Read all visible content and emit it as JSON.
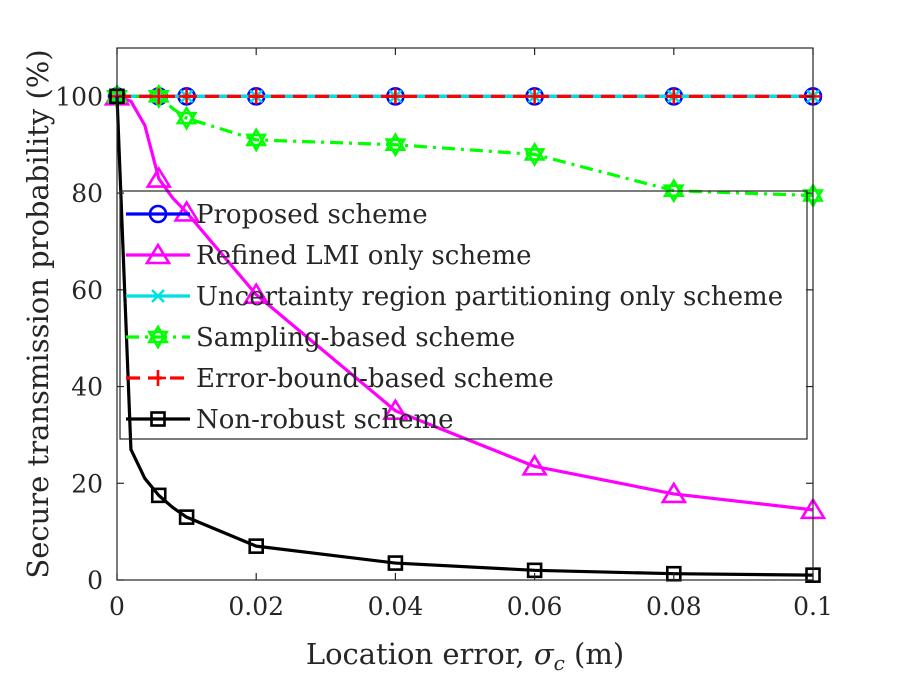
{
  "chart_data": {
    "type": "line",
    "xlabel": "Location error, σ_c (m)",
    "xlabel_main": "Location error, ",
    "xlabel_sym": "σ",
    "xlabel_sub": "c",
    "xlabel_unit": " (m)",
    "ylabel": "Secure transmission probability (%)",
    "xlim": [
      0,
      0.1
    ],
    "ylim": [
      0,
      110
    ],
    "x_ticks": [
      0,
      0.02,
      0.04,
      0.06,
      0.08,
      0.1
    ],
    "x_tick_labels": [
      "0",
      "0.02",
      "0.04",
      "0.06",
      "0.08",
      "0.1"
    ],
    "y_ticks": [
      0,
      20,
      40,
      60,
      80,
      100
    ],
    "y_tick_labels": [
      "0",
      "20",
      "40",
      "60",
      "80",
      "100"
    ],
    "grid": false,
    "legend_position": "center-right",
    "series": [
      {
        "name": "Proposed scheme",
        "color": "#0000ff",
        "dash": "solid",
        "marker": "circle",
        "x": [
          0,
          0.002,
          0.004,
          0.006,
          0.008,
          0.01,
          0.02,
          0.04,
          0.06,
          0.08,
          0.1
        ],
        "y": [
          100,
          100,
          100,
          100,
          100,
          100,
          100,
          100,
          100,
          100,
          100
        ],
        "marker_x": [
          0,
          0.006,
          0.01,
          0.02,
          0.04,
          0.06,
          0.08,
          0.1
        ]
      },
      {
        "name": "Refined LMI only scheme",
        "color": "#ff00ff",
        "dash": "solid",
        "marker": "triangle",
        "x": [
          0,
          0.002,
          0.004,
          0.006,
          0.008,
          0.01,
          0.02,
          0.04,
          0.06,
          0.08,
          0.1
        ],
        "y": [
          100,
          99,
          94,
          83,
          79,
          76,
          59,
          35,
          23.5,
          17.8,
          14.5
        ],
        "marker_x": [
          0,
          0.006,
          0.01,
          0.02,
          0.04,
          0.06,
          0.08,
          0.1
        ]
      },
      {
        "name": "Uncertainty region partitioning only scheme",
        "color": "#00e0e0",
        "dash": "solid",
        "marker": "x",
        "x": [
          0,
          0.002,
          0.004,
          0.006,
          0.008,
          0.01,
          0.02,
          0.04,
          0.06,
          0.08,
          0.1
        ],
        "y": [
          100,
          100,
          100,
          100,
          100,
          100,
          100,
          100,
          100,
          100,
          100
        ],
        "marker_x": [
          0,
          0.006,
          0.01,
          0.02,
          0.04,
          0.06,
          0.08,
          0.1
        ]
      },
      {
        "name": "Sampling-based scheme",
        "color": "#00ff00",
        "dash": "dashdot",
        "marker": "hexagram",
        "x": [
          0,
          0.002,
          0.004,
          0.006,
          0.008,
          0.01,
          0.02,
          0.04,
          0.06,
          0.08,
          0.1
        ],
        "y": [
          100,
          100,
          100,
          100,
          97.5,
          95.5,
          91,
          90,
          88,
          80.5,
          79.5
        ],
        "marker_x": [
          0,
          0.006,
          0.01,
          0.02,
          0.04,
          0.06,
          0.08,
          0.1
        ]
      },
      {
        "name": "Error-bound-based scheme",
        "color": "#ff0000",
        "dash": "dashed",
        "marker": "plus",
        "x": [
          0,
          0.002,
          0.004,
          0.006,
          0.008,
          0.01,
          0.02,
          0.04,
          0.06,
          0.08,
          0.1
        ],
        "y": [
          100,
          100,
          100,
          100,
          100,
          100,
          100,
          100,
          100,
          100,
          100
        ],
        "marker_x": [
          0,
          0.006,
          0.01,
          0.02,
          0.04,
          0.06,
          0.08,
          0.1
        ]
      },
      {
        "name": "Non-robust scheme",
        "color": "#000000",
        "dash": "solid",
        "marker": "square",
        "x": [
          0,
          0.002,
          0.004,
          0.006,
          0.008,
          0.01,
          0.02,
          0.04,
          0.06,
          0.08,
          0.1
        ],
        "y": [
          100,
          27,
          21,
          17.5,
          15,
          13,
          7,
          3.5,
          2,
          1.3,
          1
        ],
        "marker_x": [
          0,
          0.006,
          0.01,
          0.02,
          0.04,
          0.06,
          0.08,
          0.1
        ]
      }
    ]
  }
}
